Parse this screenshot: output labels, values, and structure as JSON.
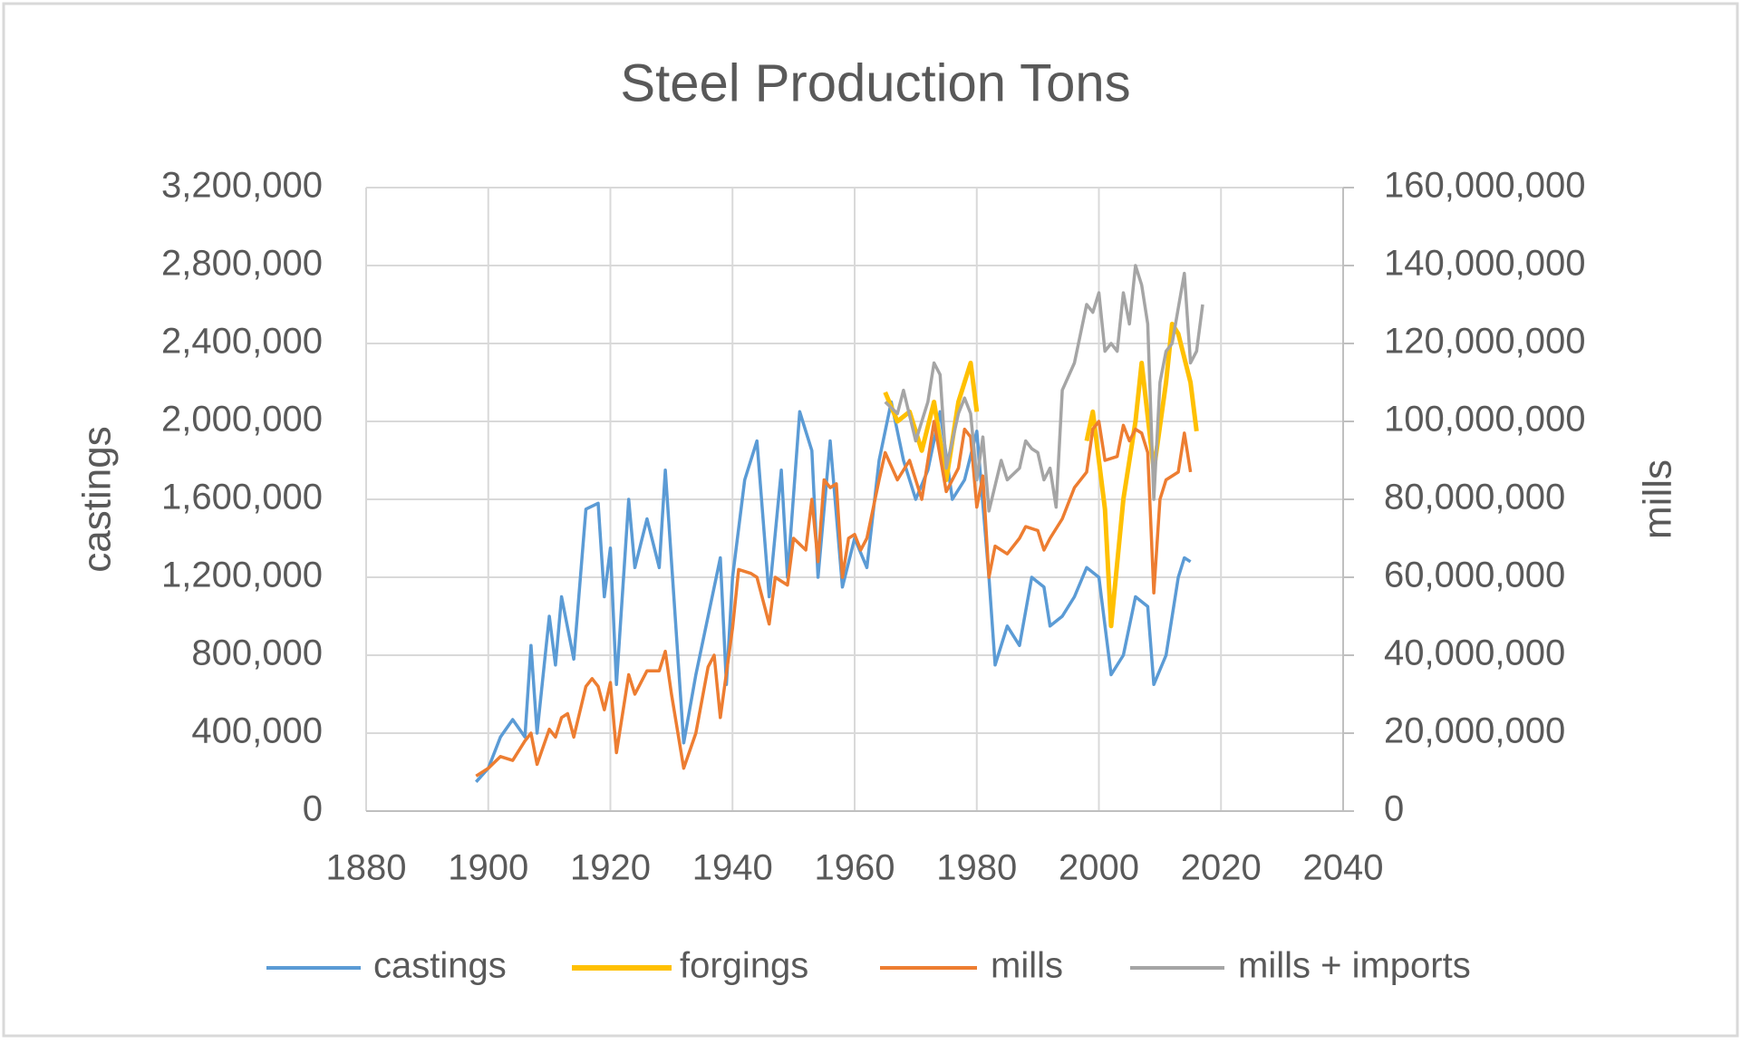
{
  "chart_data": {
    "type": "line",
    "title": "Steel Production Tons",
    "y_label": "castings",
    "y2_label": "mills",
    "xlim": [
      1880,
      2040
    ],
    "xticks": [
      1880,
      1900,
      1920,
      1940,
      1960,
      1980,
      2000,
      2020,
      2040
    ],
    "ylim": [
      0,
      3200000
    ],
    "yticks": [
      0,
      {
        "value": 400000,
        "label": "400,000"
      },
      {
        "value": 800000,
        "label": "800,000"
      },
      {
        "value": 1200000,
        "label": "1,200,000"
      },
      {
        "value": 1600000,
        "label": "1,600,000"
      },
      {
        "value": 2000000,
        "label": "2,000,000"
      },
      {
        "value": 2400000,
        "label": "2,400,000"
      },
      {
        "value": 2800000,
        "label": "2,800,000"
      },
      {
        "value": 3200000,
        "label": "3,200,000"
      }
    ],
    "y2lim": [
      0,
      160000000
    ],
    "y2ticks": [
      0,
      {
        "value": 20000000,
        "label": "20,000,000"
      },
      {
        "value": 40000000,
        "label": "40,000,000"
      },
      {
        "value": 60000000,
        "label": "60,000,000"
      },
      {
        "value": 80000000,
        "label": "80,000,000"
      },
      {
        "value": 100000000,
        "label": "100,000,000"
      },
      {
        "value": 120000000,
        "label": "120,000,000"
      },
      {
        "value": 140000000,
        "label": "140,000,000"
      },
      {
        "value": 160000000,
        "label": "160,000,000"
      }
    ],
    "grid": true,
    "legend": "bottom",
    "series": [
      {
        "name": "castings",
        "color": "#5b9bd5",
        "x": [
          1898,
          1900,
          1902,
          1904,
          1906,
          1907,
          1908,
          1910,
          1911,
          1912,
          1914,
          1916,
          1918,
          1919,
          1920,
          1921,
          1923,
          1924,
          1926,
          1928,
          1929,
          1932,
          1934,
          1936,
          1938,
          1939,
          1940,
          1942,
          1944,
          1946,
          1948,
          1949,
          1951,
          1953,
          1954,
          1956,
          1958,
          1960,
          1962,
          1964,
          1966,
          1968,
          1970,
          1972,
          1974,
          1976,
          1978,
          1980,
          1982,
          1983,
          1985,
          1987,
          1989,
          1991,
          1992,
          1994,
          1996,
          1998,
          2000,
          2002,
          2004,
          2006,
          2008,
          2009,
          2011,
          2013,
          2014,
          2015
        ],
        "values": [
          150000,
          220000,
          380000,
          470000,
          380000,
          850000,
          400000,
          1000000,
          750000,
          1100000,
          780000,
          1550000,
          1580000,
          1100000,
          1350000,
          650000,
          1600000,
          1250000,
          1500000,
          1250000,
          1750000,
          350000,
          700000,
          1000000,
          1300000,
          650000,
          1200000,
          1700000,
          1900000,
          1100000,
          1750000,
          1200000,
          2050000,
          1850000,
          1200000,
          1900000,
          1150000,
          1400000,
          1250000,
          1800000,
          2100000,
          1800000,
          1600000,
          1750000,
          2050000,
          1600000,
          1700000,
          1950000,
          1200000,
          750000,
          950000,
          850000,
          1200000,
          1150000,
          950000,
          1000000,
          1100000,
          1250000,
          1200000,
          700000,
          800000,
          1100000,
          1050000,
          650000,
          800000,
          1200000,
          1300000,
          1280000
        ]
      },
      {
        "name": "forgings",
        "color": "#ffc000",
        "x": [
          1965,
          1967,
          1969,
          1971,
          1973,
          1975,
          1977,
          1979,
          1980,
          1989,
          1998,
          1999,
          2001,
          2002,
          2004,
          2006,
          2007,
          2009,
          2011,
          2012,
          2013,
          2015,
          2016
        ],
        "values": [
          2150000,
          2000000,
          2050000,
          1850000,
          2100000,
          1700000,
          2100000,
          2300000,
          2050000,
          null,
          1900000,
          2050000,
          1550000,
          950000,
          1600000,
          2000000,
          2300000,
          1750000,
          2200000,
          2500000,
          2450000,
          2200000,
          1950000
        ]
      },
      {
        "name": "mills",
        "color": "#ed7d31",
        "axis": "y2",
        "x": [
          1898,
          1900,
          1902,
          1904,
          1906,
          1907,
          1908,
          1910,
          1911,
          1912,
          1913,
          1914,
          1916,
          1917,
          1918,
          1919,
          1920,
          1921,
          1923,
          1924,
          1926,
          1928,
          1929,
          1930,
          1932,
          1934,
          1936,
          1937,
          1938,
          1940,
          1941,
          1943,
          1944,
          1946,
          1947,
          1949,
          1950,
          1952,
          1953,
          1954,
          1955,
          1956,
          1957,
          1958,
          1959,
          1960,
          1961,
          1962,
          1964,
          1965,
          1967,
          1969,
          1970,
          1971,
          1973,
          1975,
          1977,
          1978,
          1979,
          1980,
          1981,
          1982,
          1983,
          1985,
          1987,
          1988,
          1990,
          1991,
          1992,
          1994,
          1995,
          1996,
          1998,
          1999,
          2000,
          2001,
          2003,
          2004,
          2005,
          2006,
          2007,
          2008,
          2009,
          2010,
          2011,
          2013,
          2014,
          2015
        ],
        "values": [
          9000000,
          11000000,
          14000000,
          13000000,
          18000000,
          20000000,
          12000000,
          21000000,
          19000000,
          24000000,
          25000000,
          19000000,
          32000000,
          34000000,
          32000000,
          26000000,
          33000000,
          15000000,
          35000000,
          30000000,
          36000000,
          36000000,
          41000000,
          30000000,
          11000000,
          20000000,
          37000000,
          40000000,
          24000000,
          47000000,
          62000000,
          61000000,
          60000000,
          48000000,
          60000000,
          58000000,
          70000000,
          67000000,
          80000000,
          64000000,
          85000000,
          83000000,
          84000000,
          60000000,
          70000000,
          71000000,
          67000000,
          70000000,
          85000000,
          92000000,
          85000000,
          90000000,
          85000000,
          80000000,
          100000000,
          82000000,
          88000000,
          98000000,
          96000000,
          78000000,
          86000000,
          60000000,
          68000000,
          66000000,
          70000000,
          73000000,
          72000000,
          67000000,
          70000000,
          75000000,
          79000000,
          83000000,
          87000000,
          98000000,
          100000000,
          90000000,
          91000000,
          99000000,
          95000000,
          98000000,
          97000000,
          92000000,
          56000000,
          80000000,
          85000000,
          87000000,
          97000000,
          87000000
        ]
      },
      {
        "name": "mills + imports",
        "color": "#a5a5a5",
        "axis": "y2",
        "x": [
          1965,
          1967,
          1968,
          1970,
          1972,
          1973,
          1974,
          1975,
          1977,
          1978,
          1979,
          1980,
          1981,
          1982,
          1984,
          1985,
          1987,
          1988,
          1989,
          1990,
          1991,
          1992,
          1993,
          1994,
          1996,
          1998,
          1999,
          2000,
          2001,
          2002,
          2003,
          2004,
          2005,
          2006,
          2007,
          2008,
          2009,
          2010,
          2011,
          2012,
          2014,
          2015,
          2016,
          2017
        ],
        "values": [
          105000000,
          102000000,
          108000000,
          95000000,
          105000000,
          115000000,
          112000000,
          88000000,
          102000000,
          106000000,
          102000000,
          85000000,
          96000000,
          77000000,
          90000000,
          85000000,
          88000000,
          95000000,
          93000000,
          92000000,
          85000000,
          88000000,
          78000000,
          108000000,
          115000000,
          130000000,
          128000000,
          133000000,
          118000000,
          120000000,
          118000000,
          133000000,
          125000000,
          140000000,
          135000000,
          125000000,
          80000000,
          110000000,
          118000000,
          120000000,
          138000000,
          115000000,
          118000000,
          130000000
        ]
      }
    ]
  }
}
